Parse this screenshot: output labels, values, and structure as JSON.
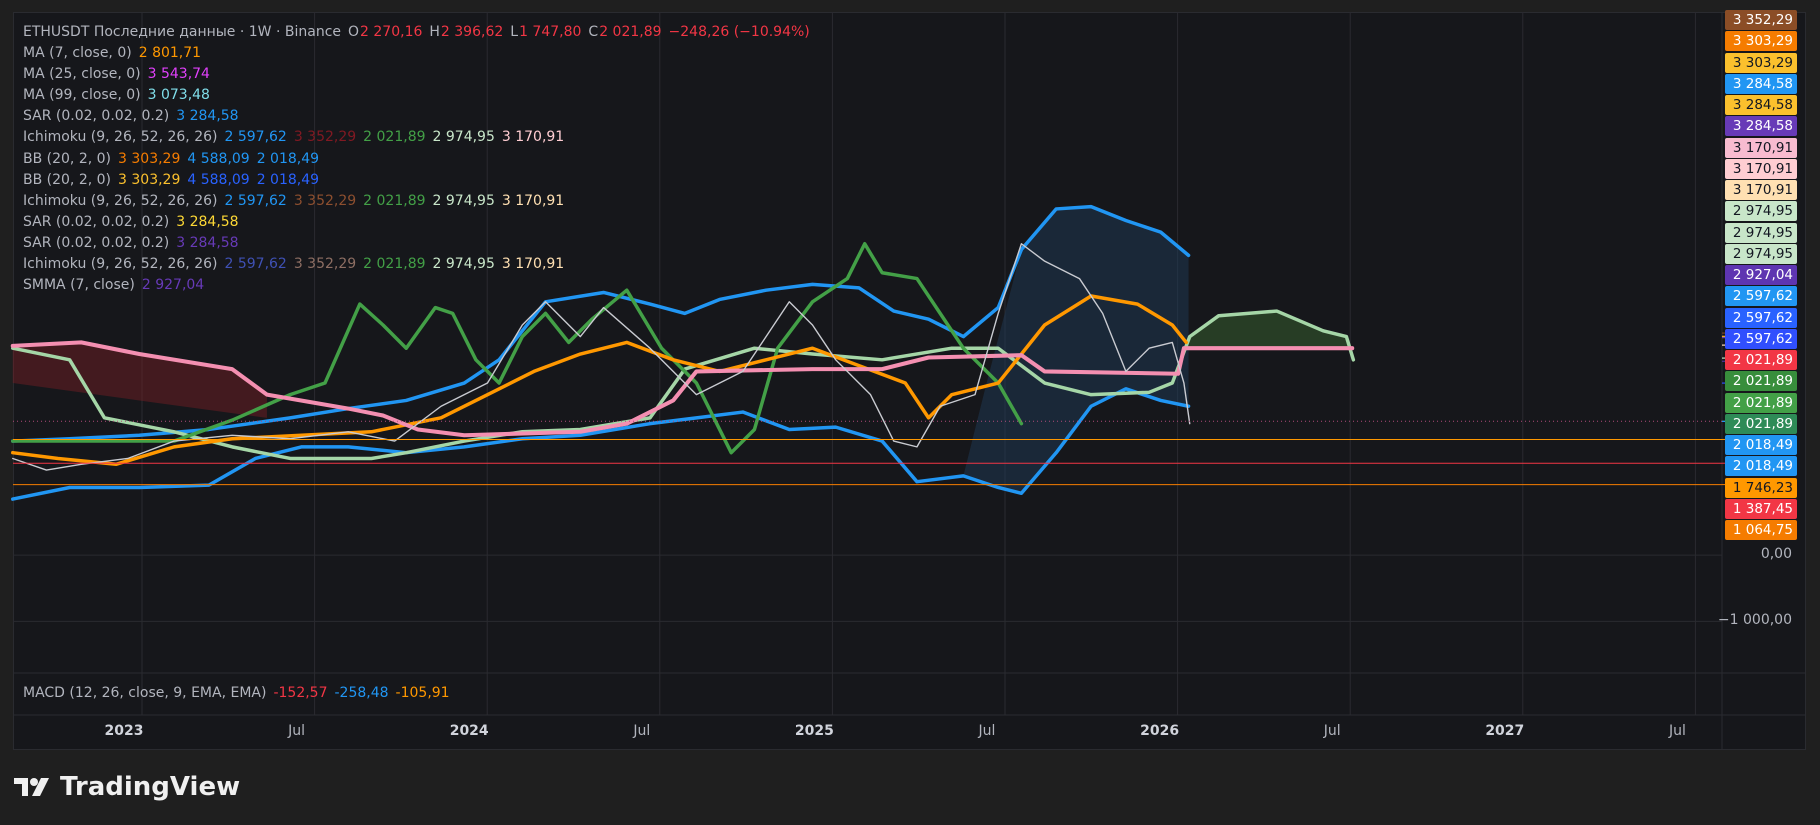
{
  "header": {
    "symbol_line": "ETHUSDT Последние данные · 1W · Binance",
    "ohlc": [
      {
        "key": "O",
        "value": "2 270,16"
      },
      {
        "key": "H",
        "value": "2 396,62"
      },
      {
        "key": "L",
        "value": "1 747,80"
      },
      {
        "key": "C",
        "value": "2 021,89"
      }
    ],
    "change": "−248,26 (−10.94%)"
  },
  "indicators": [
    {
      "name": "MA (7, close, 0)",
      "values": [
        {
          "text": "2 801,71",
          "color": "#ff9800"
        }
      ]
    },
    {
      "name": "MA (25, close, 0)",
      "values": [
        {
          "text": "3 543,74",
          "color": "#e040fb"
        }
      ]
    },
    {
      "name": "MA (99, close, 0)",
      "values": [
        {
          "text": "3 073,48",
          "color": "#80deea"
        }
      ]
    },
    {
      "name": "SAR (0.02, 0.02, 0.2)",
      "values": [
        {
          "text": "3 284,58",
          "color": "#2196f3"
        }
      ]
    },
    {
      "name": "Ichimoku (9, 26, 52, 26, 26)",
      "values": [
        {
          "text": "2 597,62",
          "color": "#2196f3"
        },
        {
          "text": "3 352,29",
          "color": "#801922"
        },
        {
          "text": "2 021,89",
          "color": "#43a047"
        },
        {
          "text": "2 974,95",
          "color": "#c8e6c9"
        },
        {
          "text": "3 170,91",
          "color": "#ffcdd2"
        }
      ]
    },
    {
      "name": "BB (20, 2, 0)",
      "values": [
        {
          "text": "3 303,29",
          "color": "#f57c00"
        },
        {
          "text": "4 588,09",
          "color": "#2196f3"
        },
        {
          "text": "2 018,49",
          "color": "#2196f3"
        }
      ]
    },
    {
      "name": "BB (20, 2, 0)",
      "values": [
        {
          "text": "3 303,29",
          "color": "#fbc02d"
        },
        {
          "text": "4 588,09",
          "color": "#2962ff"
        },
        {
          "text": "2 018,49",
          "color": "#2962ff"
        }
      ]
    },
    {
      "name": "Ichimoku (9, 26, 52, 26, 26)",
      "values": [
        {
          "text": "2 597,62",
          "color": "#2196f3"
        },
        {
          "text": "3 352,29",
          "color": "#8d4f2f"
        },
        {
          "text": "2 021,89",
          "color": "#43a047"
        },
        {
          "text": "2 974,95",
          "color": "#c8e6c9"
        },
        {
          "text": "3 170,91",
          "color": "#ffe0b2"
        }
      ]
    },
    {
      "name": "SAR (0.02, 0.02, 0.2)",
      "values": [
        {
          "text": "3 284,58",
          "color": "#fdd835"
        }
      ]
    },
    {
      "name": "SAR (0.02, 0.02, 0.2)",
      "values": [
        {
          "text": "3 284,58",
          "color": "#673ab7"
        }
      ]
    },
    {
      "name": "Ichimoku (9, 26, 52, 26, 26)",
      "values": [
        {
          "text": "2 597,62",
          "color": "#3f51b5"
        },
        {
          "text": "3 352,29",
          "color": "#8d6e63"
        },
        {
          "text": "2 021,89",
          "color": "#43a047"
        },
        {
          "text": "2 974,95",
          "color": "#c8e6c9"
        },
        {
          "text": "3 170,91",
          "color": "#ffe0b2"
        }
      ]
    },
    {
      "name": "SMMA (7, close)",
      "values": [
        {
          "text": "2 927,04",
          "color": "#673ab7"
        }
      ]
    }
  ],
  "price_axis": {
    "ylim": [
      -1780,
      8200
    ],
    "ticks": [
      {
        "value": 0,
        "label": "0,00"
      },
      {
        "value": -1000,
        "label": "−1 000,00"
      }
    ],
    "labels": [
      {
        "value": 3352.29,
        "label": "3 352,29",
        "color": "#8b4d26"
      },
      {
        "value": 3303.29,
        "label": "3 303,29",
        "color": "#f57c00"
      },
      {
        "value": 3303.29,
        "label": "3 303,29",
        "color": "#fbc02d"
      },
      {
        "value": 3284.58,
        "label": "3 284,58",
        "color": "#2196f3"
      },
      {
        "value": 3284.58,
        "label": "3 284,58",
        "color": "#fbc02d"
      },
      {
        "value": 3284.58,
        "label": "3 284,58",
        "color": "#673ab7"
      },
      {
        "value": 3170.91,
        "label": "3 170,91",
        "color": "#f8bbd0"
      },
      {
        "value": 3170.91,
        "label": "3 170,91",
        "color": "#ffcdd2"
      },
      {
        "value": 3170.91,
        "label": "3 170,91",
        "color": "#ffe0b2"
      },
      {
        "value": 2974.95,
        "label": "2 974,95",
        "color": "#c8e6c9"
      },
      {
        "value": 2974.95,
        "label": "2 974,95",
        "color": "#c8e6c9"
      },
      {
        "value": 2974.95,
        "label": "2 974,95",
        "color": "#c8e6c9"
      },
      {
        "value": 2927.04,
        "label": "2 927,04",
        "color": "#5e35b1"
      },
      {
        "value": 2597.62,
        "label": "2 597,62",
        "color": "#2196f3"
      },
      {
        "value": 2597.62,
        "label": "2 597,62",
        "color": "#2962ff"
      },
      {
        "value": 2597.62,
        "label": "2 597,62",
        "color": "#304ffe"
      },
      {
        "value": 2021.89,
        "label": "2 021,89",
        "color": "#f23645"
      },
      {
        "value": 2021.89,
        "label": "2 021,89",
        "color": "#388e3c"
      },
      {
        "value": 2021.89,
        "label": "2 021,89",
        "color": "#43a047"
      },
      {
        "value": 2021.89,
        "label": "2 021,89",
        "color": "#2e8b57"
      },
      {
        "value": 2018.49,
        "label": "2 018,49",
        "color": "#2196f3"
      },
      {
        "value": 2018.49,
        "label": "2 018,49",
        "color": "#2196f3"
      },
      {
        "value": 1746.23,
        "label": "1 746,23",
        "color": "#ff9800"
      },
      {
        "value": 1387.45,
        "label": "1 387,45",
        "color": "#f23645"
      },
      {
        "value": 1064.75,
        "label": "1 064,75",
        "color": "#f57c00"
      }
    ]
  },
  "time_axis": [
    "2023",
    "Jul",
    "2024",
    "Jul",
    "2025",
    "Jul",
    "2026",
    "Jul",
    "2027",
    "Jul"
  ],
  "macd": {
    "name": "MACD (12, 26, close, 9, EMA, EMA)",
    "values": [
      {
        "text": "-152,57",
        "color": "#f23645"
      },
      {
        "text": "-258,48",
        "color": "#2196f3"
      },
      {
        "text": "-105,91",
        "color": "#ff9800"
      }
    ]
  },
  "brand": "TradingView"
}
